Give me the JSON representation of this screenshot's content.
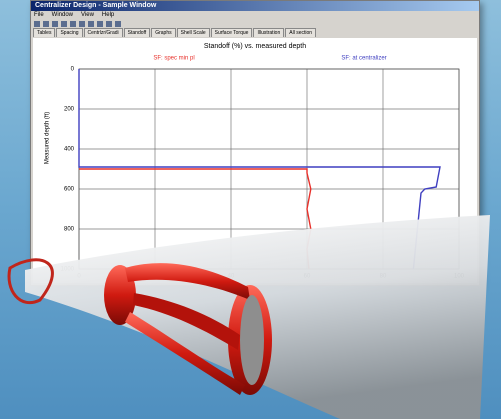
{
  "window": {
    "title": "Centralizer Design - Sample Window",
    "menu": [
      "File",
      "Window",
      "View",
      "Help"
    ],
    "tabs": [
      "Tables",
      "Spacing",
      "Centrlzr/Gradi",
      "Standoff",
      "Graphs",
      "Shell Scale",
      "Surface Torque",
      "Illustration",
      "All section"
    ]
  },
  "chart_data": {
    "type": "line",
    "title": "Standoff (%) vs. measured depth",
    "y_label": "Measured depth (ft)",
    "xlim": [
      0,
      100
    ],
    "xticks": [
      0,
      20,
      40,
      60,
      80,
      100
    ],
    "ylim": [
      0,
      1000
    ],
    "yticks": [
      0,
      200,
      400,
      600,
      800,
      1000
    ],
    "y_inverted": true,
    "grid": true,
    "series": [
      {
        "name": "SF: spec min pl",
        "color": "#e8302a",
        "x": [
          0,
          60,
          60,
          61,
          60,
          61,
          60,
          60.5
        ],
        "values": [
          500,
          500,
          520,
          600,
          700,
          800,
          900,
          1000
        ]
      },
      {
        "name": "SF: at centralizer",
        "color": "#3f3fc0",
        "x": [
          0,
          0,
          95,
          94,
          91,
          90,
          88
        ],
        "values": [
          0,
          490,
          490,
          590,
          600,
          620,
          1000
        ]
      }
    ]
  }
}
